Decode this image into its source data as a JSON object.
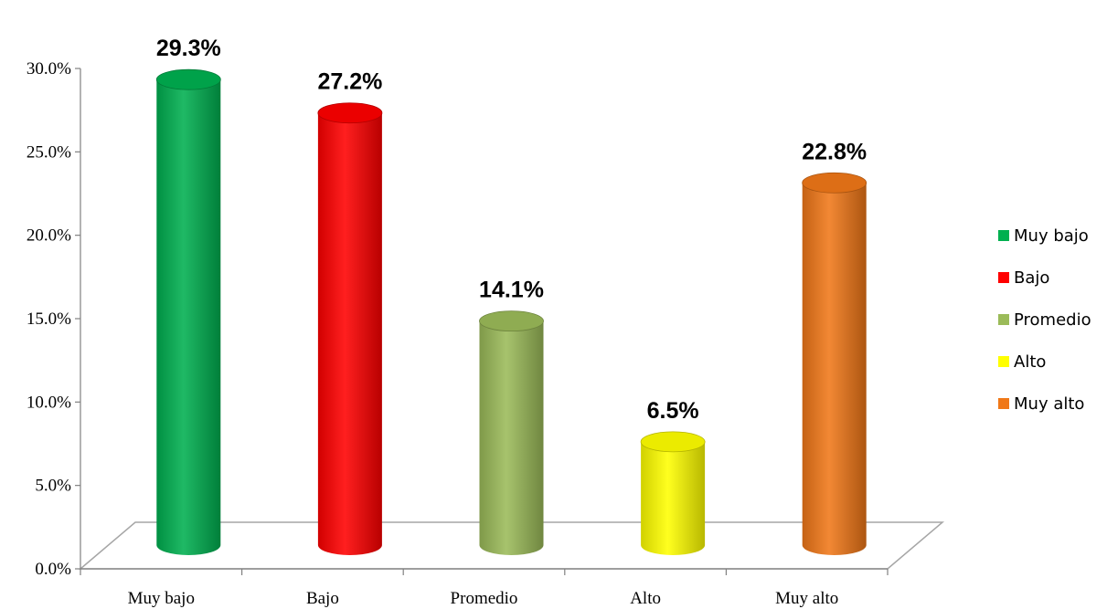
{
  "chart_data": {
    "type": "bar",
    "categories": [
      "Muy bajo",
      "Bajo",
      "Promedio",
      "Alto",
      "Muy alto"
    ],
    "values": [
      29.3,
      27.2,
      14.1,
      6.5,
      22.8
    ],
    "data_labels": [
      "29.3%",
      "27.2%",
      "14.1%",
      "6.5%",
      "22.8%"
    ],
    "colors": [
      "#00b050",
      "#ff0000",
      "#9bbb59",
      "#ffff00",
      "#f07818"
    ],
    "y_ticks": [
      "0.0%",
      "5.0%",
      "10.0%",
      "15.0%",
      "20.0%",
      "25.0%",
      "30.0%"
    ],
    "ylim": [
      0,
      30
    ],
    "legend": {
      "placement": "right",
      "entries": [
        "Muy bajo",
        "Bajo",
        "Promedio",
        "Alto",
        "Muy alto"
      ]
    },
    "grid": false,
    "style": "3d-cylinder"
  }
}
